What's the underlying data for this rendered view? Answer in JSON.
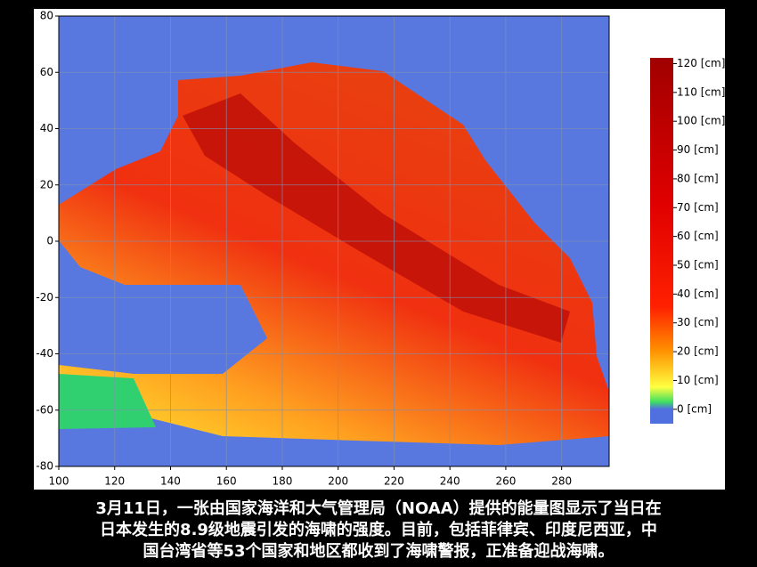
{
  "map": {
    "xlim": [
      100,
      297
    ],
    "ylim": [
      -80,
      80
    ],
    "xticks": [
      100,
      120,
      140,
      160,
      180,
      200,
      220,
      240,
      260,
      280
    ],
    "yticks": [
      -80,
      -60,
      -40,
      -20,
      0,
      20,
      40,
      60,
      80
    ],
    "colorbar": {
      "lim": [
        -5,
        122
      ],
      "ticks": [
        {
          "value": 0,
          "label": "0 [cm]"
        },
        {
          "value": 10,
          "label": "10 [cm]"
        },
        {
          "value": 20,
          "label": "20 [cm]"
        },
        {
          "value": 30,
          "label": "30 [cm]"
        },
        {
          "value": 40,
          "label": "40 [cm]"
        },
        {
          "value": 50,
          "label": "50 [cm]"
        },
        {
          "value": 60,
          "label": "60 [cm]"
        },
        {
          "value": 70,
          "label": "70 [cm]"
        },
        {
          "value": 80,
          "label": "80 [cm]"
        },
        {
          "value": 90,
          "label": "90 [cm]"
        },
        {
          "value": 100,
          "label": "100 [cm]"
        },
        {
          "value": 110,
          "label": "110 [cm]"
        },
        {
          "value": 120,
          "label": "120 [cm]"
        }
      ]
    }
  },
  "caption": [
    "3月11日，一张由国家海洋和大气管理局（NOAA）提供的能量图显示了当日在",
    "日本发生的8.9级地震引发的海啸的强度。目前，包括菲律宾、印度尼西亚，中",
    "国台湾省等53个国家和地区都收到了海啸警报，正准备迎战海啸。"
  ]
}
